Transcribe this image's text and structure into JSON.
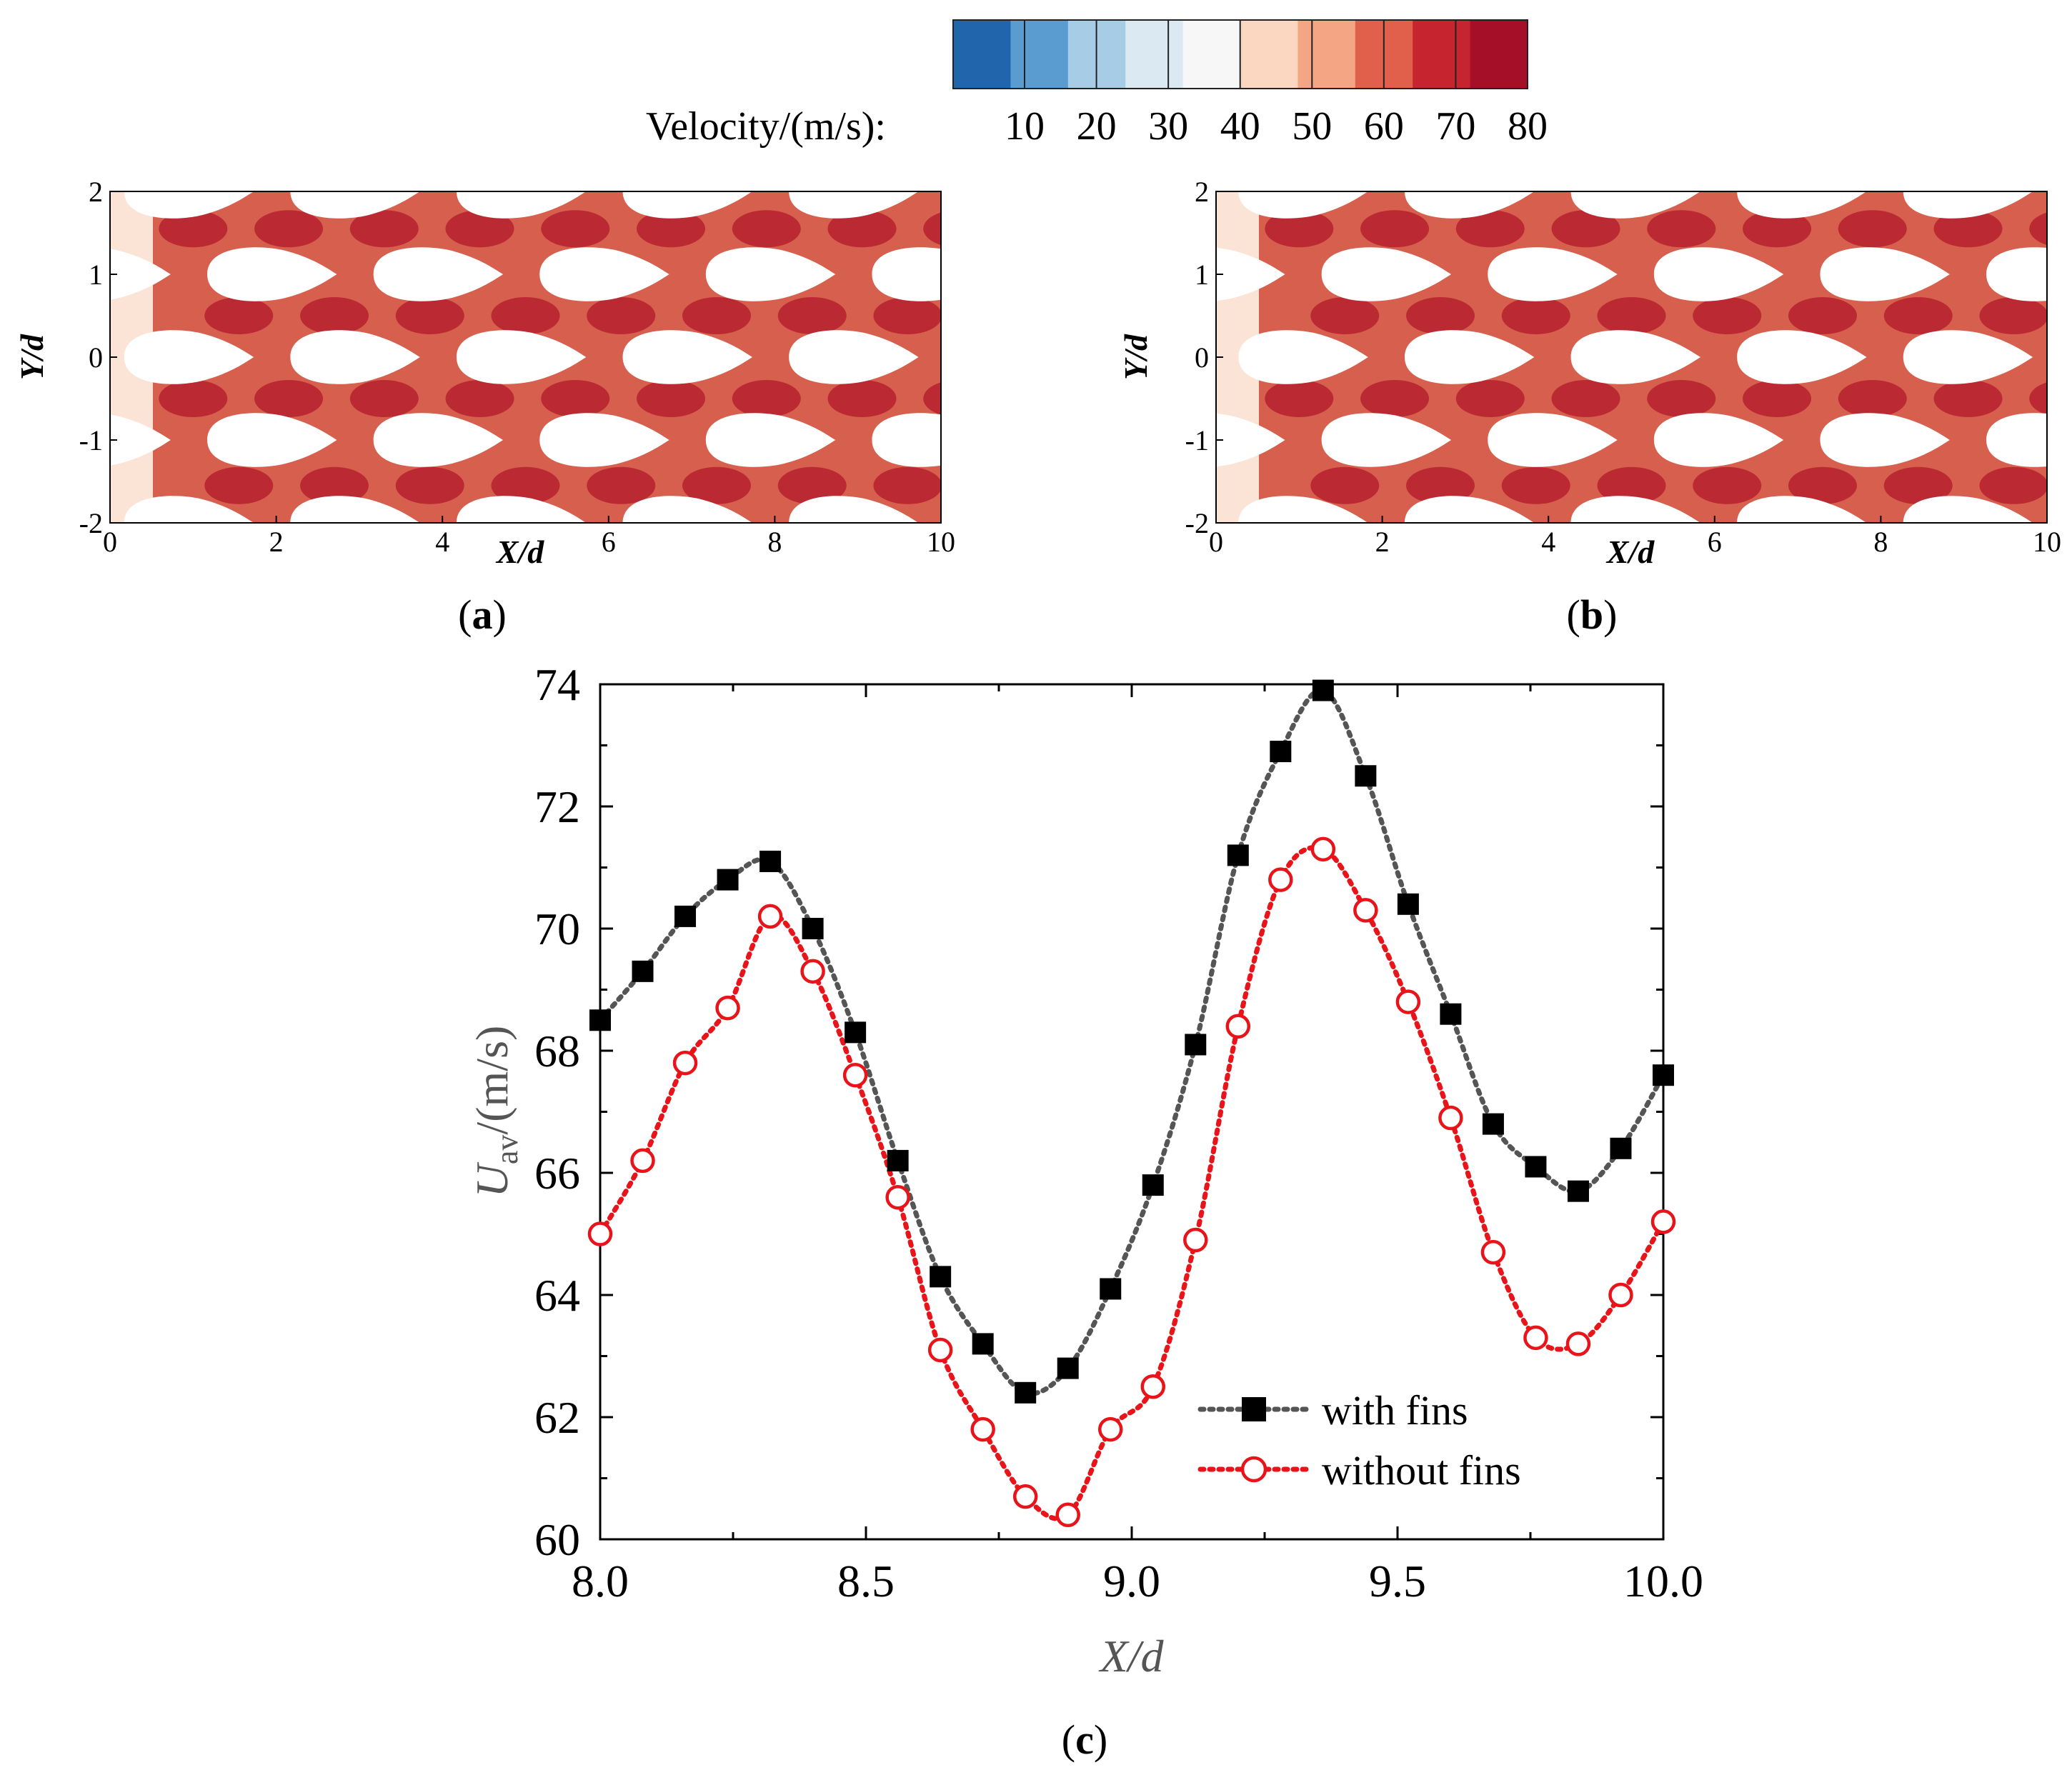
{
  "colors": {
    "scale": [
      "#2166ac",
      "#5a9bd0",
      "#a6cce6",
      "#dbe9f3",
      "#f7f7f7",
      "#fbd7c2",
      "#f4a583",
      "#e0604b",
      "#c6252f",
      "#a50f28"
    ],
    "with_fins": "#000000",
    "with_fins_line": "#555555",
    "without_fins": "#e8141a"
  },
  "colorbar": {
    "label": "Velocity/(m/s):",
    "ticks": [
      "10",
      "20",
      "30",
      "40",
      "50",
      "60",
      "70",
      "80"
    ]
  },
  "panels": {
    "a": {
      "label": "(a)",
      "label_letter": "a",
      "xlabel": "X/d",
      "ylabel": "Y/d",
      "xticks": [
        "0",
        "2",
        "4",
        "6",
        "8",
        "10"
      ],
      "yticks": [
        "2",
        "1",
        "0",
        "-1",
        "-2"
      ]
    },
    "b": {
      "label": "(b)",
      "label_letter": "b",
      "xlabel": "X/d",
      "ylabel": "Y/d",
      "xticks": [
        "0",
        "2",
        "4",
        "6",
        "8",
        "10"
      ],
      "yticks": [
        "2",
        "1",
        "0",
        "-1",
        "-2"
      ]
    },
    "c": {
      "label": "(c)",
      "label_letter": "c"
    }
  },
  "chart_data": {
    "type": "line",
    "title": "",
    "xlabel": "X/d",
    "ylabel_main": "U",
    "ylabel_sub": "av",
    "ylabel_rest": "/(m/s)",
    "xlim": [
      8.0,
      10.0
    ],
    "ylim": [
      60,
      74
    ],
    "xticks": [
      "8.0",
      "8.5",
      "9.0",
      "9.5",
      "10.0"
    ],
    "yticks": [
      "60",
      "62",
      "64",
      "66",
      "68",
      "70",
      "72",
      "74"
    ],
    "legend_position": "bottom-right",
    "x": [
      8.0,
      8.08,
      8.16,
      8.24,
      8.32,
      8.4,
      8.48,
      8.56,
      8.64,
      8.72,
      8.8,
      8.88,
      8.96,
      9.04,
      9.12,
      9.2,
      9.28,
      9.36,
      9.44,
      9.52,
      9.6,
      9.68,
      9.76,
      9.84,
      9.92,
      10.0
    ],
    "series": [
      {
        "name": "with fins",
        "marker": "square",
        "values": [
          68.5,
          69.3,
          70.2,
          70.8,
          71.1,
          70.0,
          68.3,
          66.2,
          64.3,
          63.2,
          62.4,
          62.8,
          64.1,
          65.8,
          68.1,
          71.2,
          72.9,
          73.9,
          72.5,
          70.4,
          68.6,
          66.8,
          66.1,
          65.7,
          66.4,
          67.6
        ]
      },
      {
        "name": "without fins",
        "marker": "open-circle",
        "values": [
          65.0,
          66.2,
          67.8,
          68.7,
          70.2,
          69.3,
          67.6,
          65.6,
          63.1,
          61.8,
          60.7,
          60.4,
          61.8,
          62.5,
          64.9,
          68.4,
          70.8,
          71.3,
          70.3,
          68.8,
          66.9,
          64.7,
          63.3,
          63.2,
          64.0,
          65.2
        ]
      }
    ]
  }
}
